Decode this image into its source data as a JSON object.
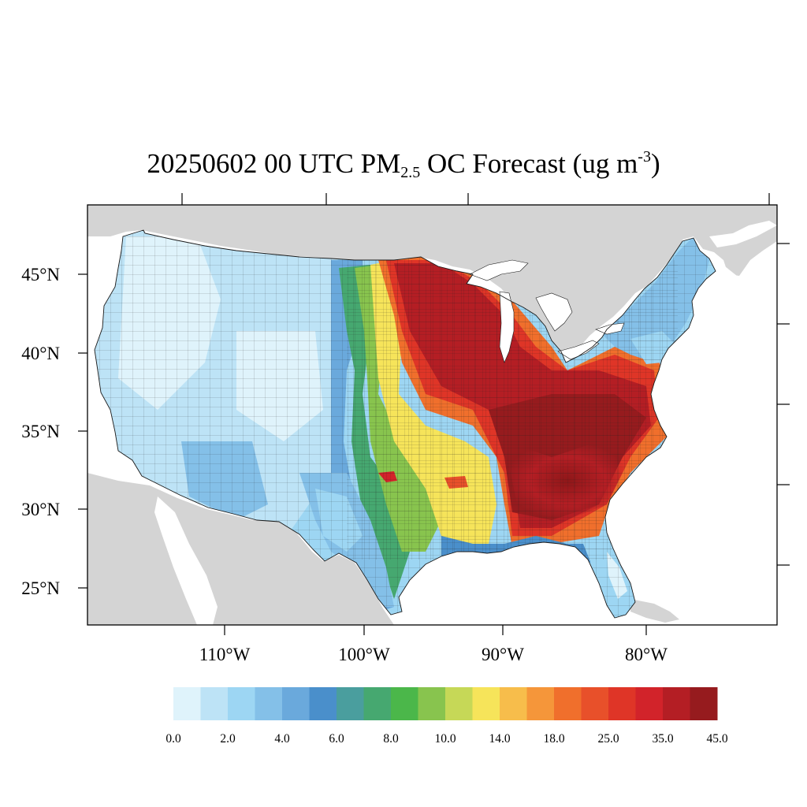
{
  "title": {
    "main": "20250602 00 UTC PM",
    "sub": "2.5",
    "mid": " OC Forecast (ug m",
    "sup": "-3",
    "end": ")"
  },
  "map": {
    "lat_ticks": [
      "45°N",
      "40°N",
      "35°N",
      "30°N",
      "25°N"
    ],
    "lon_ticks": [
      "110°W",
      "100°W",
      "90°W",
      "80°W"
    ],
    "colors": {
      "land_outside": "#d4d4d4",
      "water": "#ffffff",
      "border": "#1a1a1a"
    }
  },
  "colorbar": {
    "labels": [
      "0.0",
      "2.0",
      "4.0",
      "6.0",
      "8.0",
      "10.0",
      "14.0",
      "18.0",
      "25.0",
      "35.0",
      "45.0"
    ],
    "colors": [
      "#dff3fb",
      "#bde3f6",
      "#9dd6f3",
      "#84c0e8",
      "#6aa9dc",
      "#4a8fcb",
      "#4a9e9e",
      "#46a870",
      "#4bb74a",
      "#88c44e",
      "#c6d857",
      "#f6e45a",
      "#f7bd4b",
      "#f5963a",
      "#f06f2c",
      "#e8502a",
      "#df3527",
      "#d2232a",
      "#b41e24",
      "#961b1e"
    ]
  }
}
